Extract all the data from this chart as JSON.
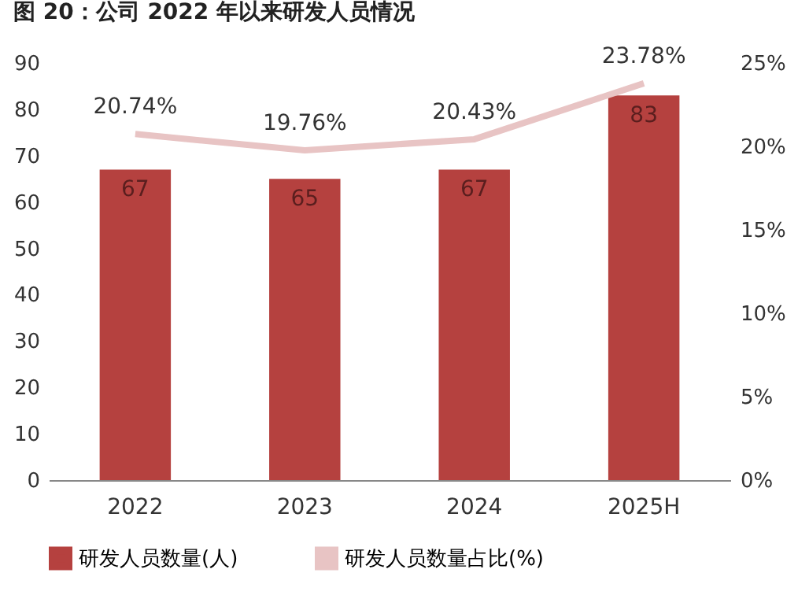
{
  "chart_data": {
    "type": "bar",
    "title": "图 20：公司 2022 年以来研发人员情况",
    "categories": [
      "2022",
      "2023",
      "2024",
      "2025H"
    ],
    "series": [
      {
        "name": "研发人员数量(人)",
        "color": "#b5413f",
        "values": [
          67,
          65,
          67,
          83
        ],
        "value_labels": [
          "67",
          "65",
          "67",
          "83"
        ]
      },
      {
        "name": "研发人员数量占比(%)",
        "type": "line",
        "axis": "y2",
        "color": "#e8c4c4",
        "values": [
          20.74,
          19.76,
          20.43,
          23.78
        ],
        "value_labels": [
          "20.74%",
          "19.76%",
          "20.43%",
          "23.78%"
        ]
      }
    ],
    "ylim": [
      0,
      90
    ],
    "yticks": [
      0,
      10,
      20,
      30,
      40,
      50,
      60,
      70,
      80,
      90
    ],
    "y2lim": [
      0,
      25
    ],
    "y2ticks": [
      {
        "value": 0,
        "label": "0%"
      },
      {
        "value": 5,
        "label": "5%"
      },
      {
        "value": 10,
        "label": "10%"
      },
      {
        "value": 15,
        "label": "15%"
      },
      {
        "value": 20,
        "label": "20%"
      },
      {
        "value": 25,
        "label": "25%"
      }
    ],
    "legend": "bottom",
    "grid": false,
    "marker": "none"
  }
}
